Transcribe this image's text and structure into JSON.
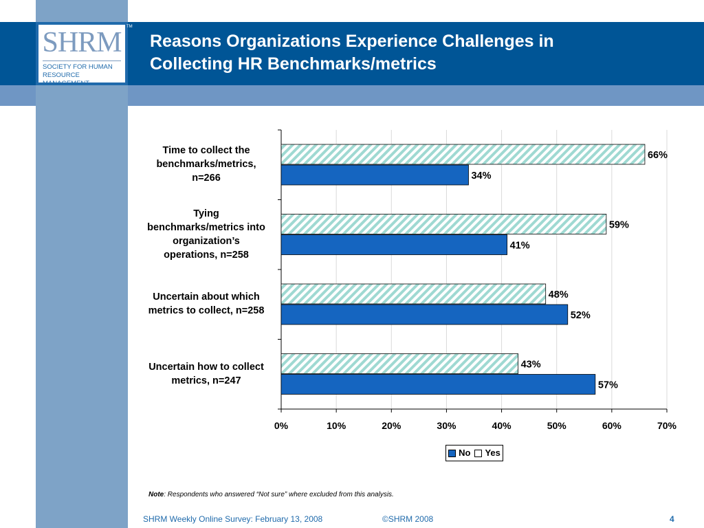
{
  "header": {
    "title_line1": "Reasons Organizations Experience Challenges in",
    "title_line2": "Collecting HR Benchmarks/metrics"
  },
  "logo": {
    "mark": "SHRM",
    "tm": "TM",
    "line1": "SOCIETY FOR HUMAN",
    "line2": "RESOURCE MANAGEMENT"
  },
  "chart_data": {
    "type": "bar",
    "orientation": "horizontal",
    "categories": [
      "Time to collect the benchmarks/metrics, n=266",
      "Tying benchmarks/metrics into organization’s operations, n=258",
      "Uncertain about which metrics to collect, n=258",
      "Uncertain how to collect metrics, n=247"
    ],
    "category_lines": [
      [
        "Time to collect the",
        "benchmarks/metrics,",
        "n=266"
      ],
      [
        "Tying",
        "benchmarks/metrics into",
        "organization’s",
        "operations, n=258"
      ],
      [
        "Uncertain about which",
        "metrics to collect, n=258"
      ],
      [
        "Uncertain how to collect",
        "metrics, n=247"
      ]
    ],
    "series": [
      {
        "name": "No",
        "values": [
          34,
          41,
          52,
          57
        ],
        "labels": [
          "34%",
          "41%",
          "52%",
          "57%"
        ],
        "color": "#1565c0"
      },
      {
        "name": "Yes",
        "values": [
          66,
          59,
          48,
          43
        ],
        "labels": [
          "66%",
          "59%",
          "48%",
          "43%"
        ],
        "color": "#9fd9d2"
      }
    ],
    "xlim": [
      0,
      70
    ],
    "xticks": [
      "0%",
      "10%",
      "20%",
      "30%",
      "40%",
      "50%",
      "60%",
      "70%"
    ],
    "grid": true,
    "legend": "bottom",
    "legend_no": "No",
    "legend_yes": "Yes"
  },
  "note": {
    "label": "Note",
    "text": ": Respondents who answered  “Not sure” where excluded from this analysis."
  },
  "footer": {
    "left": "SHRM Weekly Online Survey: February  13, 2008",
    "center": "©SHRM 2008",
    "page": "4"
  }
}
